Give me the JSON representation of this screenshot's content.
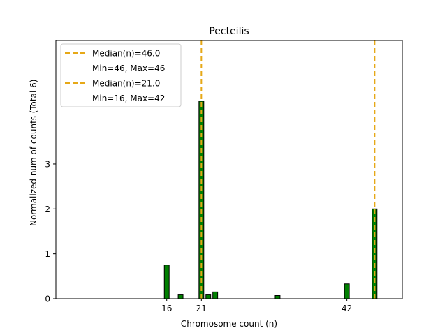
{
  "chart_data": {
    "type": "bar",
    "title": "Pecteilis",
    "xlabel": "Chromosome count (n)",
    "ylabel": "Normalized num of counts",
    "ylabel_total": "(Total 6)",
    "xlim": [
      0,
      50
    ],
    "ylim": [
      0,
      5.75
    ],
    "xticks": [
      16,
      21,
      42
    ],
    "yticks": [
      0,
      1,
      2,
      3
    ],
    "bar_width": 0.7,
    "bar_color": "#008000",
    "bar_edge_color": "#000000",
    "bars": [
      {
        "x": 16,
        "value": 0.75
      },
      {
        "x": 18,
        "value": 0.1
      },
      {
        "x": 21,
        "value": 4.4
      },
      {
        "x": 22,
        "value": 0.1
      },
      {
        "x": 23,
        "value": 0.15
      },
      {
        "x": 32,
        "value": 0.07
      },
      {
        "x": 42,
        "value": 0.33
      },
      {
        "x": 46,
        "value": 2.0
      }
    ],
    "median_lines": [
      {
        "x": 46,
        "color": "#e6a817"
      },
      {
        "x": 21,
        "color": "#e6a817"
      }
    ],
    "legend": {
      "position": "top-left",
      "entries": [
        {
          "label": "Median(n)=46.0",
          "style": "dashed",
          "color": "#e6a817"
        },
        {
          "label": "Min=46, Max=46",
          "style": "none"
        },
        {
          "label": "Median(n)=21.0",
          "style": "dashed",
          "color": "#e6a817"
        },
        {
          "label": "Min=16, Max=42",
          "style": "none"
        }
      ]
    }
  }
}
